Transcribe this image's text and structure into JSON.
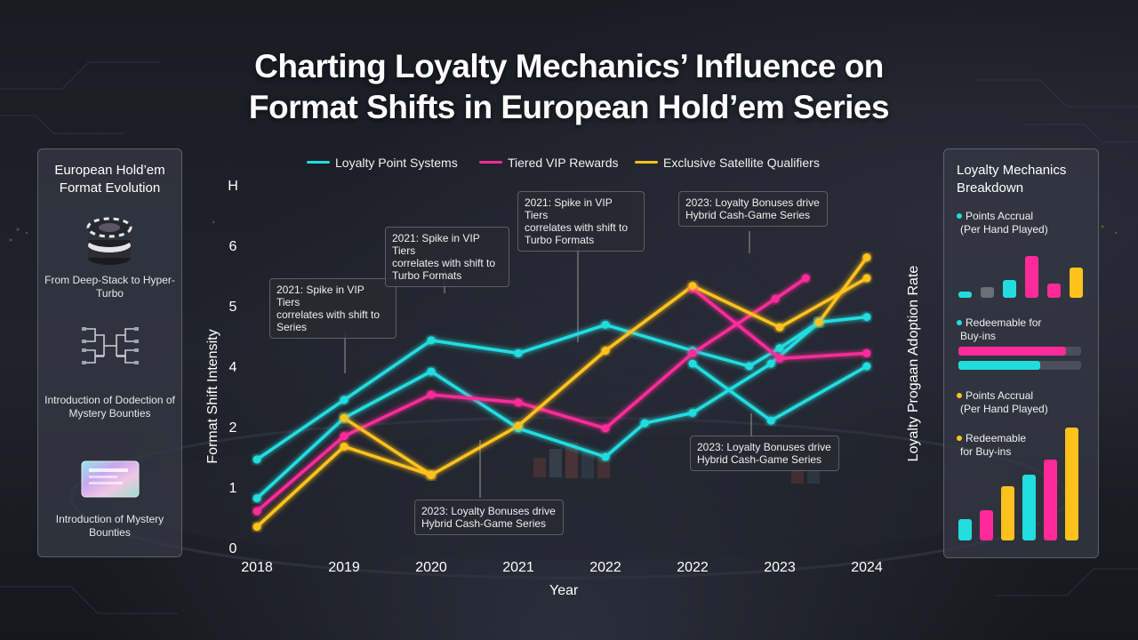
{
  "title_lines": [
    "Charting Loyalty Mechanics’ Influence on",
    "Format Shifts in European Hold’em Series"
  ],
  "colors": {
    "cyan": "#22dde0",
    "magenta": "#ff2a9a",
    "gold": "#ffc21d",
    "gray_bar": "#6b6f78"
  },
  "legend": [
    {
      "label": "Loyalty Point Systems",
      "color": "#22dde0"
    },
    {
      "label": "Tiered VIP Rewards",
      "color": "#ff2a9a"
    },
    {
      "label": "Exclusive Satellite Qualifiers",
      "color": "#ffc21d"
    }
  ],
  "left_panel": {
    "title": "European Hold’em Format Evolution",
    "items": [
      {
        "icon": "poker-chips-icon",
        "caption": "From Deep-Stack to Hyper-Turbo"
      },
      {
        "icon": "tournament-bracket-icon",
        "caption": "Introduction of Dodection of Mystery Bounties"
      },
      {
        "icon": "holographic-card-icon",
        "caption": "Introduction of Mystery Bounties"
      }
    ]
  },
  "right_panel": {
    "title": "Loyalty Mechanics Breakdown",
    "items": [
      {
        "label_lines": [
          "Points Accrual",
          "(Per Hand Played)"
        ],
        "color": "#22dde0"
      },
      {
        "label_lines": [
          "Redeemable for",
          "Buy-ins"
        ],
        "color": "#22dde0"
      },
      {
        "label_lines": [
          "Points Accrual",
          "(Per Hand Played)"
        ],
        "color": "#ffc21d"
      },
      {
        "label_lines": [
          "Redeemable",
          "for Buy-ins"
        ],
        "color": "#ffc21d"
      }
    ],
    "bars_small": [
      {
        "value": 0.12,
        "color": "#22dde0"
      },
      {
        "value": 0.2,
        "color": "#6b6f78"
      },
      {
        "value": 0.33,
        "color": "#22dde0"
      },
      {
        "value": 0.75,
        "color": "#ff2a9a"
      },
      {
        "value": 0.25,
        "color": "#ff2a9a"
      },
      {
        "value": 0.55,
        "color": "#ffc21d"
      }
    ],
    "progress": [
      {
        "value": 0.88,
        "color": "#ff2a9a"
      },
      {
        "value": 0.67,
        "color": "#22dde0"
      }
    ],
    "bars_large": [
      {
        "value": 0.19,
        "color": "#22dde0"
      },
      {
        "value": 0.27,
        "color": "#ff2a9a"
      },
      {
        "value": 0.48,
        "color": "#ffc21d"
      },
      {
        "value": 0.58,
        "color": "#22dde0"
      },
      {
        "value": 0.72,
        "color": "#ff2a9a"
      },
      {
        "value": 1.0,
        "color": "#ffc21d"
      }
    ]
  },
  "chart_data": {
    "type": "line",
    "title": "",
    "xlabel": "Year",
    "ylabel": "Format Shift Intensity",
    "y2label": "Loyalty Progaan Adoption Rate",
    "x_tick_labels": [
      "2018",
      "2019",
      "2020",
      "2021",
      "2022",
      "2022",
      "2023",
      "2024"
    ],
    "y_tick_labels": [
      "0",
      "1",
      "2",
      "4",
      "5",
      "6",
      "H"
    ],
    "ylim": [
      0,
      7
    ],
    "grid": false,
    "legend_position": "top",
    "series": [
      {
        "name": "Loyalty Point Systems",
        "color": "#22dde0",
        "points": [
          [
            0,
            1.7
          ],
          [
            1,
            2.85
          ],
          [
            2,
            4.0
          ],
          [
            3,
            3.75
          ],
          [
            4,
            4.3
          ],
          [
            5,
            3.8
          ],
          [
            5.65,
            3.5
          ],
          [
            6,
            3.85
          ],
          [
            6.45,
            4.35
          ],
          [
            7,
            4.45
          ]
        ]
      },
      {
        "name": "Loyalty Point Systems",
        "color": "#22dde0",
        "points": [
          [
            0,
            0.95
          ],
          [
            1,
            2.5
          ],
          [
            2,
            3.4
          ],
          [
            3,
            2.3
          ],
          [
            4,
            1.75
          ],
          [
            4.45,
            2.4
          ],
          [
            5,
            2.6
          ],
          [
            5.9,
            3.55
          ],
          [
            6.45,
            4.35
          ]
        ]
      },
      {
        "name": "Loyalty Point Systems",
        "color": "#22dde0",
        "points": [
          [
            5,
            3.55
          ],
          [
            5.9,
            2.45
          ],
          [
            7,
            3.5
          ]
        ]
      },
      {
        "name": "Tiered VIP Rewards",
        "color": "#ff2a9a",
        "points": [
          [
            0,
            0.7
          ],
          [
            1,
            2.15
          ],
          [
            2,
            2.95
          ],
          [
            3,
            2.8
          ],
          [
            4,
            2.3
          ],
          [
            5,
            3.75
          ],
          [
            5.95,
            4.8
          ],
          [
            6.3,
            5.2
          ]
        ]
      },
      {
        "name": "Tiered VIP Rewards",
        "color": "#ff2a9a",
        "points": [
          [
            5,
            5.0
          ],
          [
            6,
            3.65
          ],
          [
            7,
            3.75
          ]
        ]
      },
      {
        "name": "Exclusive Satellite Qualifiers",
        "color": "#ffc21d",
        "points": [
          [
            0,
            0.4
          ],
          [
            1,
            1.95
          ],
          [
            2,
            1.4
          ],
          [
            3,
            2.35
          ],
          [
            4,
            3.8
          ],
          [
            5,
            5.05
          ],
          [
            6,
            4.25
          ],
          [
            7,
            5.2
          ]
        ]
      },
      {
        "name": "Exclusive Satellite Qualifiers",
        "color": "#ffc21d",
        "points": [
          [
            1,
            2.5
          ],
          [
            2,
            1.4
          ]
        ]
      },
      {
        "name": "Exclusive Satellite Qualifiers",
        "color": "#ffc21d",
        "points": [
          [
            6.45,
            4.35
          ],
          [
            7,
            5.6
          ]
        ]
      }
    ],
    "annotations": [
      {
        "lines": [
          "2021: Spike in VIP Tiers",
          "correlates with shift to",
          "Series"
        ]
      },
      {
        "lines": [
          "2021: Spike in VIP Tiers",
          "correlates with shift to",
          "Turbo Formats"
        ]
      },
      {
        "lines": [
          "2021: Spike in VIP Tiers",
          "correlates with shift to",
          "Turbo Formats"
        ]
      },
      {
        "lines": [
          "2023: Loyalty Bonuses drive",
          "Hybrid Cash-Game Series"
        ]
      },
      {
        "lines": [
          "2023: Loyalty Bonuses drive",
          "Hybrid Cash-Game Series"
        ]
      },
      {
        "lines": [
          "2023: Loyalty Bonuses drive",
          "Hybrid Cash-Game Series"
        ]
      }
    ]
  }
}
